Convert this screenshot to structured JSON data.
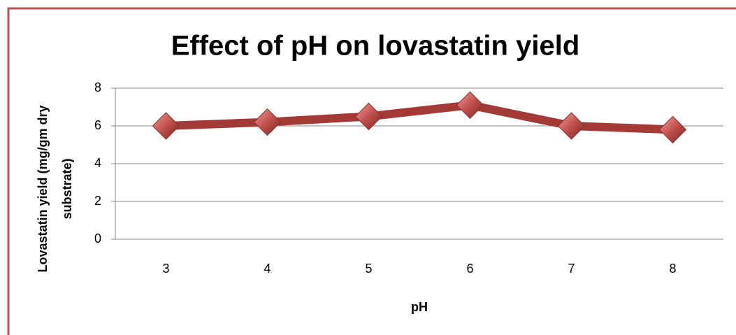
{
  "chart_data": {
    "type": "line",
    "title": "Effect of pH on lovastatin yield",
    "x_label": "pH",
    "y_label": [
      "Lovastatin yield (mg/gm dry",
      "substrate)"
    ],
    "categories": [
      "3",
      "4",
      "5",
      "6",
      "7",
      "8"
    ],
    "series": [
      {
        "name": "Lovastatin yield",
        "color": "#a33a36",
        "values": [
          6.0,
          6.2,
          6.5,
          7.1,
          6.0,
          5.8
        ]
      }
    ],
    "ylim": [
      0,
      8
    ],
    "yticks": [
      0,
      2,
      4,
      6,
      8
    ],
    "grid": true
  }
}
